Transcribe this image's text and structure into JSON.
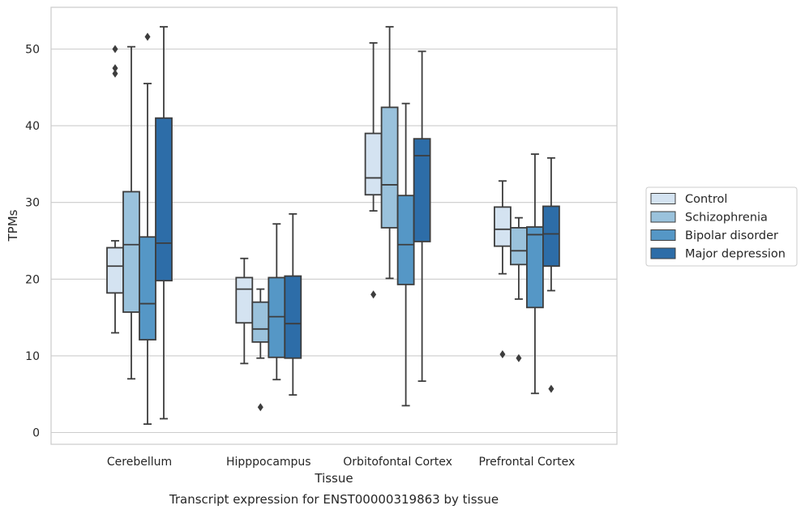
{
  "chart_data": {
    "type": "boxplot",
    "title": "",
    "caption": "Transcript expression for ENST00000319863 by tissue",
    "xlabel": "Tissue",
    "ylabel": "TPMs",
    "ylim": [
      -1.5,
      55.5
    ],
    "yticks": [
      0,
      10,
      20,
      30,
      40,
      50
    ],
    "grid": "horizontal",
    "legend_position": "right",
    "categories": [
      "Cerebellum",
      "Hipppocampus",
      "Orbitofontal Cortex",
      "Prefrontal Cortex"
    ],
    "series": [
      {
        "name": "Control",
        "color": "#d4e3f1",
        "boxes": [
          {
            "whislo": 13.0,
            "q1": 18.2,
            "med": 21.7,
            "q3": 24.1,
            "whishi": 25.0,
            "fliers": [
              47.5,
              46.8,
              50.0
            ]
          },
          {
            "whislo": 9.0,
            "q1": 14.3,
            "med": 18.7,
            "q3": 20.2,
            "whishi": 22.7,
            "fliers": []
          },
          {
            "whislo": 28.9,
            "q1": 31.0,
            "med": 33.2,
            "q3": 39.0,
            "whishi": 50.8,
            "fliers": [
              18.0
            ]
          },
          {
            "whislo": 20.7,
            "q1": 24.3,
            "med": 26.5,
            "q3": 29.4,
            "whishi": 32.8,
            "fliers": [
              10.2
            ]
          }
        ]
      },
      {
        "name": "Schizophrenia",
        "color": "#9ac2dc",
        "boxes": [
          {
            "whislo": 7.0,
            "q1": 15.7,
            "med": 24.5,
            "q3": 31.4,
            "whishi": 50.3,
            "fliers": []
          },
          {
            "whislo": 9.7,
            "q1": 11.8,
            "med": 13.5,
            "q3": 17.0,
            "whishi": 18.7,
            "fliers": [
              3.3
            ]
          },
          {
            "whislo": 20.1,
            "q1": 26.7,
            "med": 32.3,
            "q3": 42.4,
            "whishi": 52.9,
            "fliers": []
          },
          {
            "whislo": 17.4,
            "q1": 21.9,
            "med": 23.7,
            "q3": 26.7,
            "whishi": 28.0,
            "fliers": [
              9.7
            ]
          }
        ]
      },
      {
        "name": "Bipolar disorder",
        "color": "#5597c6",
        "boxes": [
          {
            "whislo": 1.1,
            "q1": 12.1,
            "med": 16.8,
            "q3": 25.5,
            "whishi": 45.5,
            "fliers": [
              51.6
            ]
          },
          {
            "whislo": 6.9,
            "q1": 9.8,
            "med": 15.1,
            "q3": 20.2,
            "whishi": 27.2,
            "fliers": []
          },
          {
            "whislo": 3.5,
            "q1": 19.3,
            "med": 24.5,
            "q3": 30.9,
            "whishi": 42.9,
            "fliers": []
          },
          {
            "whislo": 5.1,
            "q1": 16.3,
            "med": 25.8,
            "q3": 26.8,
            "whishi": 36.3,
            "fliers": []
          }
        ]
      },
      {
        "name": "Major depression",
        "color": "#2d6da8",
        "boxes": [
          {
            "whislo": 1.8,
            "q1": 19.8,
            "med": 24.7,
            "q3": 41.0,
            "whishi": 52.9,
            "fliers": []
          },
          {
            "whislo": 4.9,
            "q1": 9.7,
            "med": 14.2,
            "q3": 20.4,
            "whishi": 28.5,
            "fliers": []
          },
          {
            "whislo": 6.7,
            "q1": 24.9,
            "med": 36.1,
            "q3": 38.3,
            "whishi": 49.7,
            "fliers": []
          },
          {
            "whislo": 18.5,
            "q1": 21.7,
            "med": 25.9,
            "q3": 29.5,
            "whishi": 35.8,
            "fliers": [
              5.7
            ]
          }
        ]
      }
    ]
  }
}
